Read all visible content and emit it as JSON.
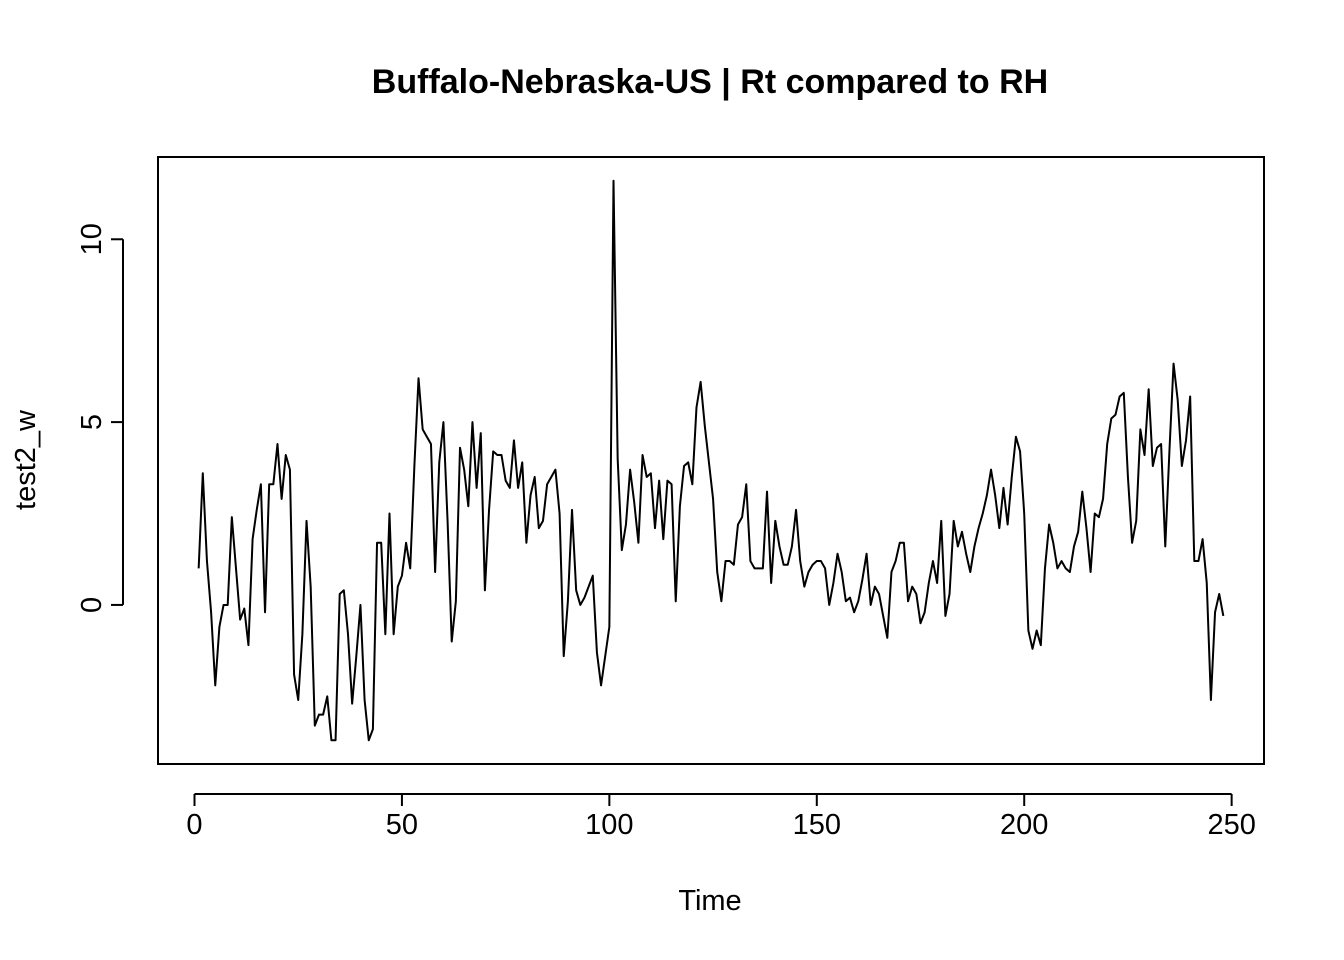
{
  "chart_data": {
    "type": "line",
    "title": "Buffalo-Nebraska-US | Rt compared to RH",
    "xlabel": "Time",
    "ylabel": "test2_w",
    "xlim": [
      -8.8,
      257.8
    ],
    "ylim": [
      -4.35,
      12.25
    ],
    "xticks": [
      0,
      50,
      100,
      150,
      200,
      250
    ],
    "xtick_labels": [
      "0",
      "50",
      "100",
      "150",
      "200",
      "250"
    ],
    "yticks": [
      0,
      5,
      10
    ],
    "ytick_labels": [
      "0",
      "5",
      "10"
    ],
    "grid": false,
    "legend": "none",
    "colors": {
      "line": "#000000",
      "axes": "#000000",
      "background": "#ffffff"
    },
    "series": [
      {
        "x_start": 1,
        "values": [
          1.0,
          3.6,
          1.2,
          -0.2,
          -2.2,
          -0.6,
          0.0,
          0.0,
          2.4,
          1.0,
          -0.4,
          -0.1,
          -1.1,
          1.8,
          2.6,
          3.3,
          -0.2,
          3.3,
          3.3,
          4.4,
          2.9,
          4.1,
          3.7,
          -1.9,
          -2.6,
          -0.8,
          2.3,
          0.5,
          -3.3,
          -3.0,
          -3.0,
          -2.5,
          -3.7,
          -3.7,
          0.3,
          0.4,
          -0.8,
          -2.7,
          -1.4,
          0.0,
          -2.6,
          -3.7,
          -3.4,
          1.7,
          1.7,
          -0.8,
          2.5,
          -0.8,
          0.5,
          0.8,
          1.7,
          1.0,
          3.8,
          6.2,
          4.8,
          4.6,
          4.4,
          0.9,
          3.9,
          5.0,
          2.3,
          -1.0,
          0.1,
          4.3,
          3.7,
          2.7,
          5.0,
          3.2,
          4.7,
          0.4,
          2.6,
          4.2,
          4.1,
          4.1,
          3.4,
          3.2,
          4.5,
          3.2,
          3.9,
          1.7,
          3.0,
          3.5,
          2.1,
          2.3,
          3.3,
          3.5,
          3.7,
          2.5,
          -1.4,
          0.1,
          2.6,
          0.4,
          0.0,
          0.2,
          0.5,
          0.8,
          -1.3,
          -2.2,
          -1.4,
          -0.6,
          11.6,
          4.0,
          1.5,
          2.2,
          3.7,
          2.8,
          1.7,
          4.1,
          3.5,
          3.6,
          2.1,
          3.4,
          1.8,
          3.4,
          3.3,
          0.1,
          2.7,
          3.8,
          3.9,
          3.3,
          5.4,
          6.1,
          4.9,
          3.9,
          2.9,
          0.9,
          0.1,
          1.2,
          1.2,
          1.1,
          2.2,
          2.4,
          3.3,
          1.2,
          1.0,
          1.0,
          1.0,
          3.1,
          0.6,
          2.3,
          1.6,
          1.1,
          1.1,
          1.6,
          2.6,
          1.2,
          0.5,
          0.9,
          1.1,
          1.2,
          1.2,
          1.0,
          0.0,
          0.6,
          1.4,
          0.9,
          0.1,
          0.2,
          -0.2,
          0.1,
          0.7,
          1.4,
          0.0,
          0.5,
          0.3,
          -0.3,
          -0.9,
          0.9,
          1.2,
          1.7,
          1.7,
          0.1,
          0.5,
          0.3,
          -0.5,
          -0.2,
          0.6,
          1.2,
          0.6,
          2.3,
          -0.3,
          0.3,
          2.3,
          1.6,
          2.0,
          1.4,
          0.9,
          1.6,
          2.1,
          2.5,
          3.0,
          3.7,
          3.0,
          2.1,
          3.2,
          2.2,
          3.5,
          4.6,
          4.2,
          2.5,
          -0.7,
          -1.2,
          -0.7,
          -1.1,
          1.0,
          2.2,
          1.7,
          1.0,
          1.2,
          1.0,
          0.9,
          1.6,
          2.0,
          3.1,
          2.1,
          0.9,
          2.5,
          2.4,
          2.9,
          4.4,
          5.1,
          5.2,
          5.7,
          5.8,
          3.5,
          1.7,
          2.3,
          4.8,
          4.1,
          5.9,
          3.8,
          4.3,
          4.4,
          1.6,
          4.2,
          6.6,
          5.6,
          3.8,
          4.5,
          5.7,
          1.2,
          1.2,
          1.8,
          0.6,
          -2.6,
          -0.2,
          0.3,
          -0.3
        ]
      }
    ]
  }
}
